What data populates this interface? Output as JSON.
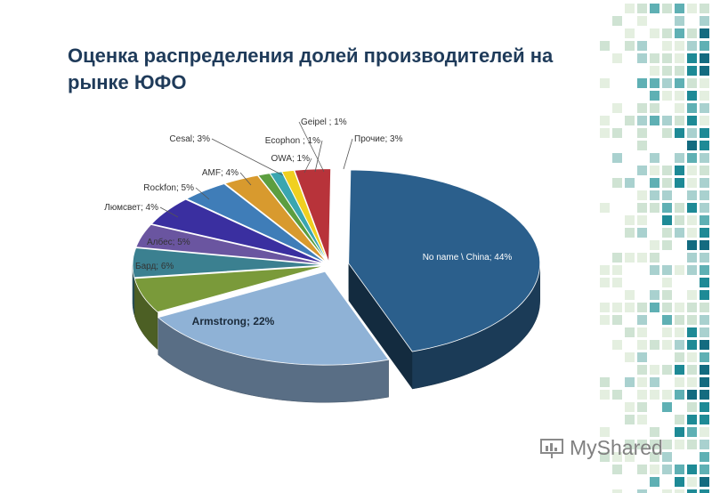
{
  "title": "Оценка распределения долей производителей на рынке ЮФО",
  "watermark": "MyShared",
  "chart_data": {
    "type": "pie",
    "style": "3d-exploded",
    "title": "",
    "slices": [
      {
        "label": "No name \\ China; 44%",
        "name": "No name \\ China",
        "value": 44,
        "color": "#2b5f8c"
      },
      {
        "label": "Armstrong; 22%",
        "name": "Armstrong",
        "value": 22,
        "color": "#8fb2d6"
      },
      {
        "label": "Бард; 6%",
        "name": "Бард",
        "value": 6,
        "color": "#7a9a3a"
      },
      {
        "label": "Албес; 5%",
        "name": "Албес",
        "value": 5,
        "color": "#3b8090"
      },
      {
        "label": "Люмсвет; 4%",
        "name": "Люмсвет",
        "value": 4,
        "color": "#6a55a0"
      },
      {
        "label": "Rockfon; 5%",
        "name": "Rockfon",
        "value": 5,
        "color": "#3a2fa0"
      },
      {
        "label": "AMF; 4%",
        "name": "AMF",
        "value": 4,
        "color": "#3f7db8"
      },
      {
        "label": "Cesal; 3%",
        "name": "Cesal",
        "value": 3,
        "color": "#d89a2e"
      },
      {
        "label": "OWA; 1%",
        "name": "OWA",
        "value": 1,
        "color": "#5c9e40"
      },
      {
        "label": "Ecophon ; 1%",
        "name": "Ecophon",
        "value": 1,
        "color": "#3aa6b0"
      },
      {
        "label": "Geipel ; 1%",
        "name": "Geipel",
        "value": 1,
        "color": "#f0d020"
      },
      {
        "label": "Прочие; 3%",
        "name": "Прочие",
        "value": 3,
        "color": "#b8333a"
      }
    ]
  }
}
